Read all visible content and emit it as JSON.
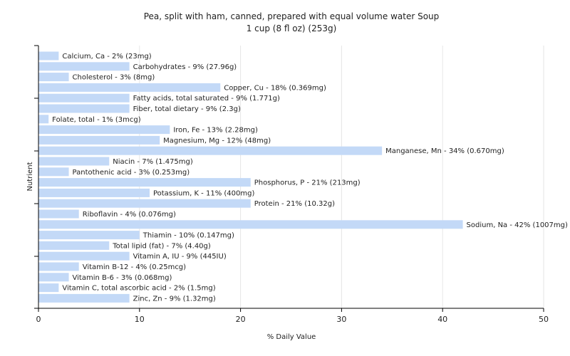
{
  "chart_data": {
    "type": "bar",
    "orientation": "horizontal",
    "title": "Pea, split with ham, canned, prepared with equal volume water Soup",
    "subtitle": "1 cup (8 fl oz) (253g)",
    "xlabel": "% Daily Value",
    "ylabel": "Nutrient",
    "xlim": [
      0,
      50
    ],
    "xticks": [
      0,
      10,
      20,
      30,
      40,
      50
    ],
    "grid": true,
    "bar_color": "#c3d9f7",
    "categories": [
      "Calcium, Ca",
      "Carbohydrates",
      "Cholesterol",
      "Copper, Cu",
      "Fatty acids, total saturated",
      "Fiber, total dietary",
      "Folate, total",
      "Iron, Fe",
      "Magnesium, Mg",
      "Manganese, Mn",
      "Niacin",
      "Pantothenic acid",
      "Phosphorus, P",
      "Potassium, K",
      "Protein",
      "Riboflavin",
      "Sodium, Na",
      "Thiamin",
      "Total lipid (fat)",
      "Vitamin A, IU",
      "Vitamin B-12",
      "Vitamin B-6",
      "Vitamin C, total ascorbic acid",
      "Zinc, Zn"
    ],
    "values": [
      2,
      9,
      3,
      18,
      9,
      9,
      1,
      13,
      12,
      34,
      7,
      3,
      21,
      11,
      21,
      4,
      42,
      10,
      7,
      9,
      4,
      3,
      2,
      9
    ],
    "labels": [
      "Calcium, Ca - 2% (23mg)",
      "Carbohydrates - 9% (27.96g)",
      "Cholesterol - 3% (8mg)",
      "Copper, Cu - 18% (0.369mg)",
      "Fatty acids, total saturated - 9% (1.771g)",
      "Fiber, total dietary - 9% (2.3g)",
      "Folate, total - 1% (3mcg)",
      "Iron, Fe - 13% (2.28mg)",
      "Magnesium, Mg - 12% (48mg)",
      "Manganese, Mn - 34% (0.670mg)",
      "Niacin - 7% (1.475mg)",
      "Pantothenic acid - 3% (0.253mg)",
      "Phosphorus, P - 21% (213mg)",
      "Potassium, K - 11% (400mg)",
      "Protein - 21% (10.32g)",
      "Riboflavin - 4% (0.076mg)",
      "Sodium, Na - 42% (1007mg)",
      "Thiamin - 10% (0.147mg)",
      "Total lipid (fat) - 7% (4.40g)",
      "Vitamin A, IU - 9% (445IU)",
      "Vitamin B-12 - 4% (0.25mcg)",
      "Vitamin B-6 - 3% (0.068mg)",
      "Vitamin C, total ascorbic acid - 2% (1.5mg)",
      "Zinc, Zn - 9% (1.32mg)"
    ]
  }
}
